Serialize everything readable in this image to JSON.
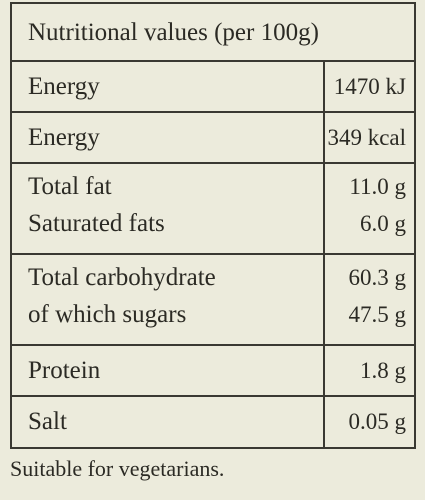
{
  "table": {
    "title": "Nutritional values (per 100g)",
    "groups": [
      [
        [
          "Energy",
          "1470 kJ"
        ]
      ],
      [
        [
          "Energy",
          "349 kcal"
        ]
      ],
      [
        [
          "Total fat",
          "11.0 g"
        ],
        [
          "Saturated fats",
          "6.0 g"
        ]
      ],
      [
        [
          "Total carbohydrate",
          "60.3 g"
        ],
        [
          "of which sugars",
          "47.5 g"
        ]
      ],
      [
        [
          "Protein",
          "1.8 g"
        ]
      ],
      [
        [
          "Salt",
          "0.05 g"
        ]
      ]
    ]
  },
  "footer": "Suitable for vegetarians."
}
